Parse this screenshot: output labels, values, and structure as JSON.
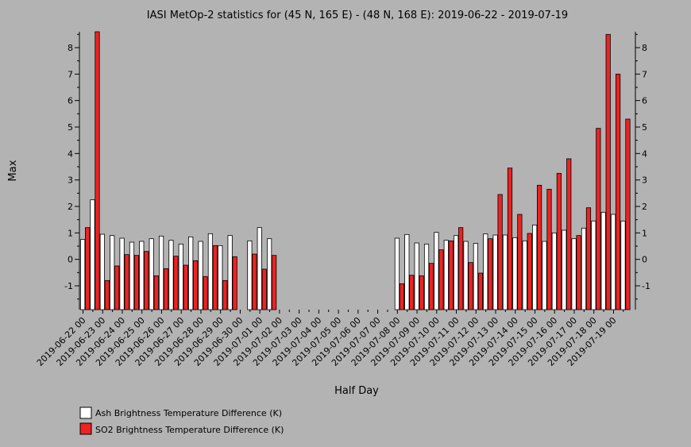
{
  "chart_data": {
    "type": "bar",
    "title": "IASI MetOp-2 statistics for (45 N, 165 E) - (48 N, 168 E): 2019-06-22 - 2019-07-19",
    "xlabel": "Half Day",
    "ylabel": "Max",
    "ylim": [
      -1.9,
      8.6
    ],
    "yticks": [
      -1,
      0,
      1,
      2,
      3,
      4,
      5,
      6,
      7,
      8
    ],
    "xtick_labels": [
      "2019-06-22 00",
      "2019-06-23 00",
      "2019-06-24 00",
      "2019-06-25 00",
      "2019-06-26 00",
      "2019-06-27 00",
      "2019-06-28 00",
      "2019-06-29 00",
      "2019-06-30 00",
      "2019-07-01 00",
      "2019-07-02 00",
      "2019-07-03 00",
      "2019-07-04 00",
      "2019-07-05 00",
      "2019-07-06 00",
      "2019-07-07 00",
      "2019-07-08 00",
      "2019-07-09 00",
      "2019-07-10 00",
      "2019-07-11 00",
      "2019-07-12 00",
      "2019-07-13 00",
      "2019-07-14 00",
      "2019-07-15 00",
      "2019-07-16 00",
      "2019-07-17 00",
      "2019-07-18 00",
      "2019-07-19 00"
    ],
    "categories": [
      "2019-06-22 00",
      "2019-06-22 12",
      "2019-06-23 00",
      "2019-06-23 12",
      "2019-06-24 00",
      "2019-06-24 12",
      "2019-06-25 00",
      "2019-06-25 12",
      "2019-06-26 00",
      "2019-06-26 12",
      "2019-06-27 00",
      "2019-06-27 12",
      "2019-06-28 00",
      "2019-06-28 12",
      "2019-06-29 00",
      "2019-06-29 12",
      "2019-06-30 00",
      "2019-06-30 12",
      "2019-07-01 00",
      "2019-07-01 12",
      "2019-07-02 00",
      "2019-07-02 12",
      "2019-07-03 00",
      "2019-07-03 12",
      "2019-07-04 00",
      "2019-07-04 12",
      "2019-07-05 00",
      "2019-07-05 12",
      "2019-07-06 00",
      "2019-07-06 12",
      "2019-07-07 00",
      "2019-07-07 12",
      "2019-07-08 00",
      "2019-07-08 12",
      "2019-07-09 00",
      "2019-07-09 12",
      "2019-07-10 00",
      "2019-07-10 12",
      "2019-07-11 00",
      "2019-07-11 12",
      "2019-07-12 00",
      "2019-07-12 12",
      "2019-07-13 00",
      "2019-07-13 12",
      "2019-07-14 00",
      "2019-07-14 12",
      "2019-07-15 00",
      "2019-07-15 12",
      "2019-07-16 00",
      "2019-07-16 12",
      "2019-07-17 00",
      "2019-07-17 12",
      "2019-07-18 00",
      "2019-07-18 12",
      "2019-07-19 00",
      "2019-07-19 12"
    ],
    "series": [
      {
        "name": "Ash Brightness Temperature Difference (K)",
        "color": "#ffffff",
        "values": [
          0.75,
          2.25,
          0.95,
          0.9,
          0.8,
          0.65,
          0.68,
          0.78,
          0.88,
          0.72,
          0.58,
          0.85,
          0.68,
          0.97,
          0.52,
          0.9,
          null,
          0.7,
          1.2,
          0.78,
          null,
          null,
          null,
          null,
          null,
          null,
          null,
          null,
          null,
          null,
          null,
          null,
          0.8,
          0.94,
          0.62,
          0.58,
          1.02,
          0.72,
          0.9,
          0.68,
          0.6,
          0.96,
          0.92,
          0.92,
          0.82,
          0.7,
          1.3,
          0.68,
          1.0,
          1.1,
          0.78,
          1.18,
          1.45,
          1.78,
          1.7,
          1.45
        ]
      },
      {
        "name": "SO2 Brightness Temperature Difference (K)",
        "color": "#ee2222",
        "values": [
          1.2,
          8.6,
          -0.8,
          -0.25,
          0.18,
          0.15,
          0.3,
          -0.62,
          -0.35,
          0.12,
          -0.22,
          -0.05,
          -0.65,
          0.52,
          -0.8,
          0.1,
          null,
          0.2,
          -0.37,
          0.15,
          null,
          null,
          null,
          null,
          null,
          null,
          null,
          null,
          null,
          null,
          null,
          null,
          -0.92,
          -0.6,
          -0.62,
          -0.15,
          0.36,
          0.7,
          1.2,
          -0.12,
          -0.52,
          0.78,
          2.45,
          3.45,
          1.7,
          0.98,
          2.8,
          2.65,
          3.25,
          3.8,
          0.9,
          1.95,
          4.95,
          8.5,
          7.0,
          5.3
        ]
      }
    ],
    "grid": false,
    "legend_placement": "bottom-left"
  }
}
